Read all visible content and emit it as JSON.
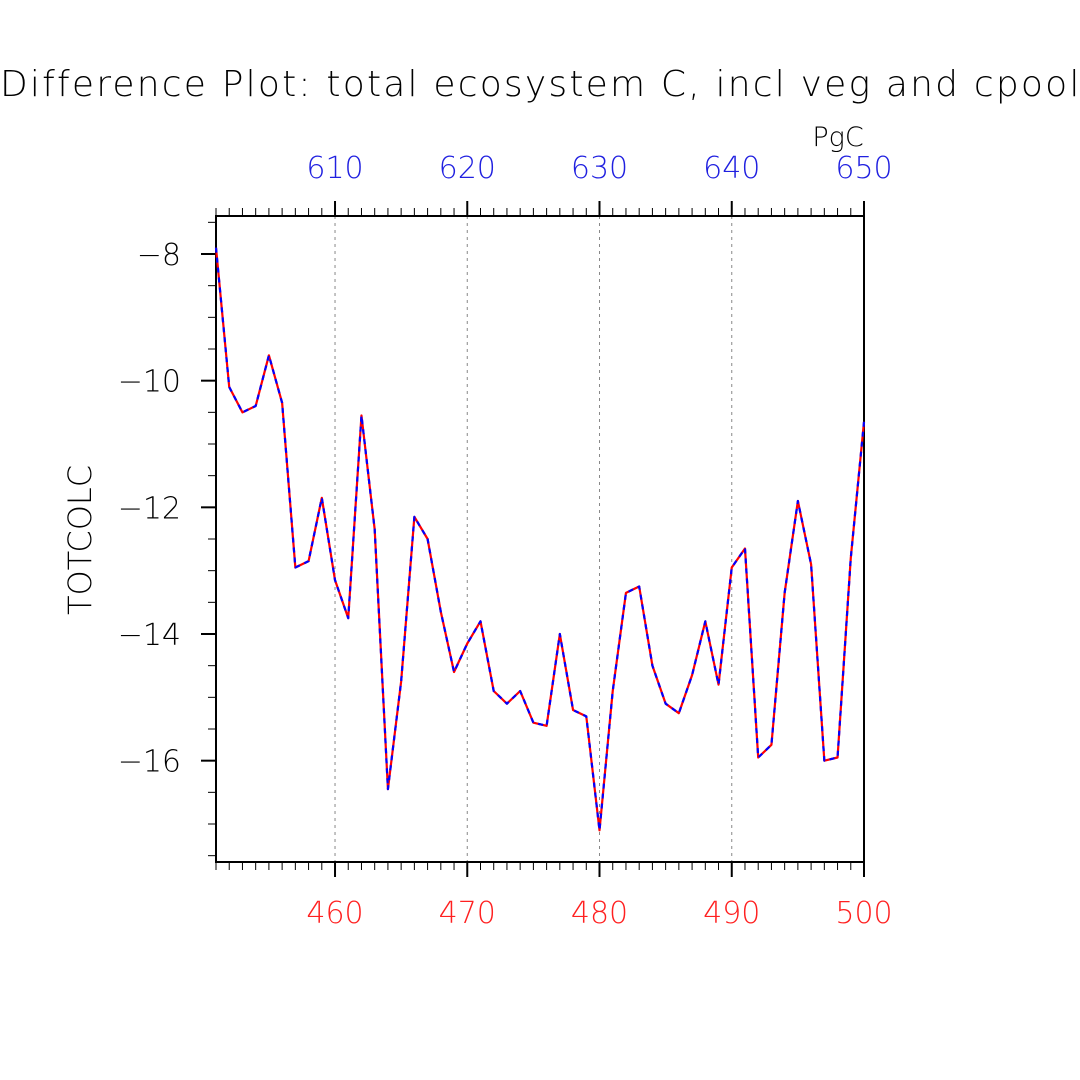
{
  "chart_data": {
    "type": "line",
    "title": "Difference Plot: total ecosystem C, incl veg and cpool",
    "ylabel": "TOTCOLC",
    "top_axis_unit": "PgC",
    "xlim_bottom": [
      451,
      500
    ],
    "xlim_top": [
      601,
      650
    ],
    "ylim": [
      -17.6,
      -7.4
    ],
    "bottom_ticks": [
      "460",
      "470",
      "480",
      "490",
      "500"
    ],
    "top_ticks": [
      "610",
      "620",
      "630",
      "640",
      "650"
    ],
    "y_ticks": [
      "−8",
      "−10",
      "−12",
      "−14",
      "−16"
    ],
    "colors": {
      "bottom_axis": "#ff2020",
      "top_axis": "#2020e0",
      "line_a": "#ff0000",
      "line_b": "#0000ff"
    },
    "x": [
      451,
      452,
      453,
      454,
      455,
      456,
      457,
      458,
      459,
      460,
      461,
      462,
      463,
      464,
      465,
      466,
      467,
      468,
      469,
      470,
      471,
      472,
      473,
      474,
      475,
      476,
      477,
      478,
      479,
      480,
      481,
      482,
      483,
      484,
      485,
      486,
      487,
      488,
      489,
      490,
      491,
      492,
      493,
      494,
      495,
      496,
      497,
      498,
      499,
      500
    ],
    "series": [
      {
        "values": [
          -7.9,
          -10.1,
          -10.5,
          -10.4,
          -9.6,
          -10.35,
          -12.95,
          -12.85,
          -11.85,
          -13.15,
          -13.75,
          -10.55,
          -12.35,
          -16.45,
          -14.75,
          -12.15,
          -12.5,
          -13.65,
          -14.6,
          -14.15,
          -13.8,
          -14.9,
          -15.1,
          -14.9,
          -15.4,
          -15.45,
          -14.0,
          -15.2,
          -15.3,
          -17.1,
          -14.9,
          -13.35,
          -13.25,
          -14.5,
          -15.1,
          -15.25,
          -14.65,
          -13.8,
          -14.8,
          -12.95,
          -12.65,
          -15.95,
          -15.75,
          -13.35,
          -11.9,
          -12.9,
          -16.0,
          -15.95,
          -12.8,
          -10.65
        ]
      },
      {
        "values": [
          -7.9,
          -10.1,
          -10.5,
          -10.4,
          -9.6,
          -10.35,
          -12.95,
          -12.85,
          -11.85,
          -13.15,
          -13.75,
          -10.55,
          -12.35,
          -16.45,
          -14.75,
          -12.15,
          -12.5,
          -13.65,
          -14.6,
          -14.15,
          -13.8,
          -14.9,
          -15.1,
          -14.9,
          -15.4,
          -15.45,
          -14.0,
          -15.2,
          -15.3,
          -17.1,
          -14.9,
          -13.35,
          -13.25,
          -14.5,
          -15.1,
          -15.25,
          -14.65,
          -13.8,
          -14.8,
          -12.95,
          -12.65,
          -15.95,
          -15.75,
          -13.35,
          -11.9,
          -12.9,
          -16.0,
          -15.95,
          -12.8,
          -10.65
        ]
      }
    ]
  }
}
